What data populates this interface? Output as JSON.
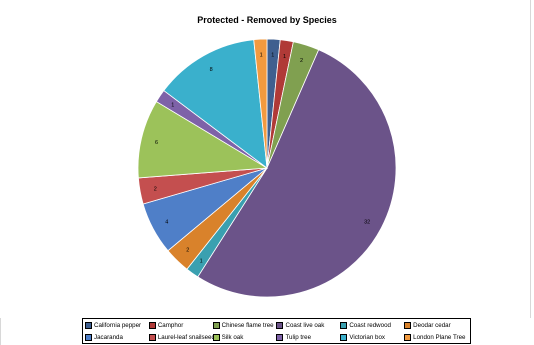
{
  "chart_data": {
    "type": "pie",
    "title": "Protected - Removed by Species",
    "slices": [
      {
        "label": "California pepper",
        "value": 1,
        "color": "#3f5f8f"
      },
      {
        "label": "Camphor",
        "value": 1,
        "color": "#b03a37"
      },
      {
        "label": "Chinese flame tree",
        "value": 2,
        "color": "#80a050"
      },
      {
        "label": "Coast live oak",
        "value": 32,
        "color": "#6b5389"
      },
      {
        "label": "Coast redwood",
        "value": 1,
        "color": "#3aa0b0"
      },
      {
        "label": "Deodar cedar",
        "value": 2,
        "color": "#d9822b"
      },
      {
        "label": "Jacaranda",
        "value": 4,
        "color": "#4f7fc8"
      },
      {
        "label": "Laurel-leaf snailseed",
        "value": 2,
        "color": "#c44f4f"
      },
      {
        "label": "Silk oak",
        "value": 6,
        "color": "#9cc25a"
      },
      {
        "label": "Tulip tree",
        "value": 1,
        "color": "#7e62a8"
      },
      {
        "label": "Victorian box",
        "value": 8,
        "color": "#3ab0cc"
      },
      {
        "label": "London Plane Tree",
        "value": 1,
        "color": "#f29a3f"
      }
    ],
    "legend_position": "bottom"
  }
}
